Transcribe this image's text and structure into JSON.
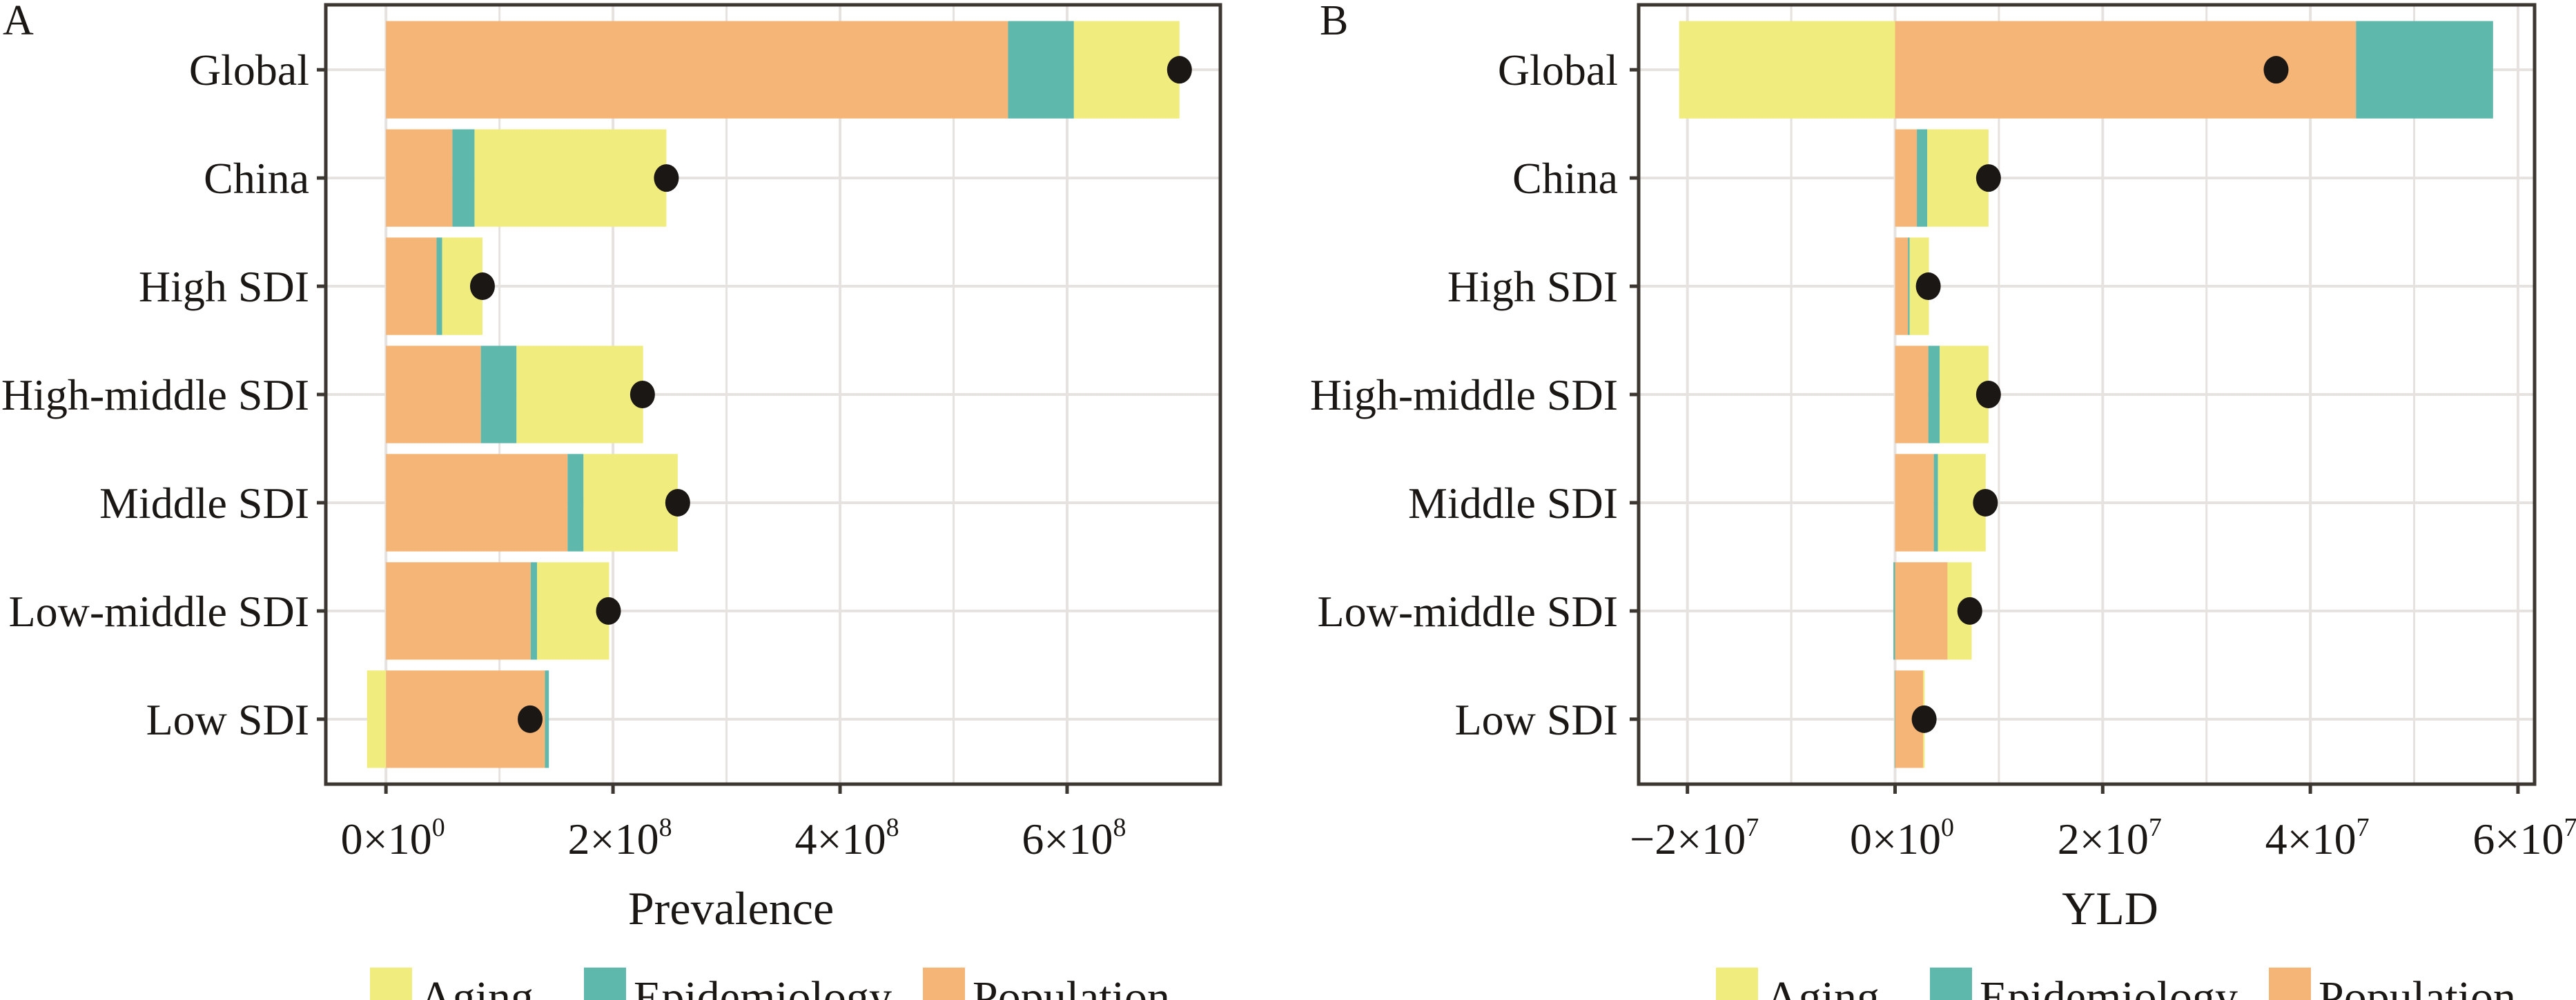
{
  "colors": {
    "Aging": "#F0EC7E",
    "Epidemiology": "#5FB8AC",
    "Population": "#F5B577",
    "dot": "#1A1714",
    "grid": "#E6E2E0",
    "border": "#3D3731"
  },
  "chart_data": [
    {
      "type": "bar",
      "orientation": "horizontal",
      "stacked": true,
      "panel_label": "A",
      "xlabel": "Prevalence",
      "xlim": [
        -53000000.0,
        735000000.0
      ],
      "grid": true,
      "legend_position": "bottom",
      "x_ticks": [
        {
          "value": 0,
          "label": "0×10",
          "exp": "0"
        },
        {
          "value": 200000000.0,
          "label": "2×10",
          "exp": "8"
        },
        {
          "value": 400000000.0,
          "label": "4×10",
          "exp": "8"
        },
        {
          "value": 600000000.0,
          "label": "6×10",
          "exp": "8"
        }
      ],
      "categories": [
        "Global",
        "China",
        "High SDI",
        "High-middle SDI",
        "Middle SDI",
        "Low-middle SDI",
        "Low SDI"
      ],
      "series": [
        {
          "name": "Population",
          "values": [
            548000000.0,
            58500000.0,
            44600000.0,
            83600000.0,
            160000000.0,
            127500000.0,
            140000000.0
          ]
        },
        {
          "name": "Epidemiology",
          "values": [
            58000000.0,
            19500000.0,
            4900000.0,
            31400000.0,
            14000000.0,
            5600000.0,
            3500000.0
          ]
        },
        {
          "name": "Aging",
          "values": [
            93000000.0,
            169000000.0,
            35500000.0,
            111500000.0,
            83000000.0,
            63500000.0,
            -16700000.0
          ]
        }
      ],
      "total_change": [
        699000000.0,
        247000000.0,
        85000000.0,
        226000000.0,
        257000000.0,
        196000000.0,
        127000000.0
      ],
      "legend": [
        "Aging",
        "Epidemiology",
        "Population"
      ]
    },
    {
      "type": "bar",
      "orientation": "horizontal",
      "stacked": true,
      "panel_label": "B",
      "xlabel": "YLD",
      "xlim": [
        -24700000.0,
        61600000.0
      ],
      "grid": true,
      "legend_position": "bottom",
      "x_ticks": [
        {
          "value": -20000000.0,
          "label": "−2×10",
          "exp": "7"
        },
        {
          "value": 0,
          "label": "0×10",
          "exp": "0"
        },
        {
          "value": 20000000.0,
          "label": "2×10",
          "exp": "7"
        },
        {
          "value": 40000000.0,
          "label": "4×10",
          "exp": "7"
        },
        {
          "value": 60000000.0,
          "label": "6×10",
          "exp": "7"
        }
      ],
      "categories": [
        "Global",
        "China",
        "High SDI",
        "High-middle SDI",
        "Middle SDI",
        "Low-middle SDI",
        "Low SDI"
      ],
      "series": [
        {
          "name": "Population",
          "values": [
            44400000.0,
            2100000.0,
            1240000.0,
            3200000.0,
            3730000.0,
            5050000.0,
            2700000.0
          ]
        },
        {
          "name": "Epidemiology",
          "values": [
            13200000.0,
            1000000.0,
            160000.0,
            1100000.0,
            400000.0,
            -160000.0,
            -50000.0
          ]
        },
        {
          "name": "Aging",
          "values": [
            -20800000.0,
            5900000.0,
            1860000.0,
            4700000.0,
            4600000.0,
            2330000.0,
            150000.0
          ]
        }
      ],
      "total_change": [
        36700000.0,
        9000000.0,
        3200000.0,
        9000000.0,
        8700000.0,
        7200000.0,
        2800000.0
      ],
      "legend": [
        "Aging",
        "Epidemiology",
        "Population"
      ]
    }
  ]
}
